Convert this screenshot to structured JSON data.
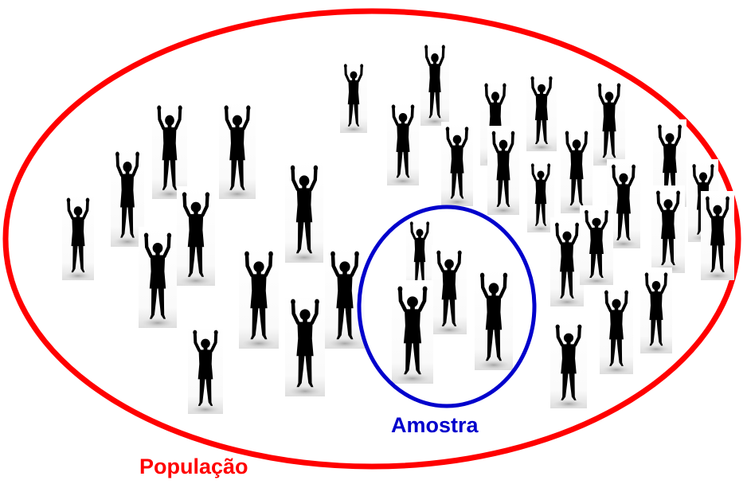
{
  "population": {
    "label": "População",
    "color": "#ff0000"
  },
  "sample": {
    "label": "Amostra",
    "color": "#0000cc"
  },
  "figure_color": "#000000",
  "figure_backdrop_color": "#ffffff"
}
